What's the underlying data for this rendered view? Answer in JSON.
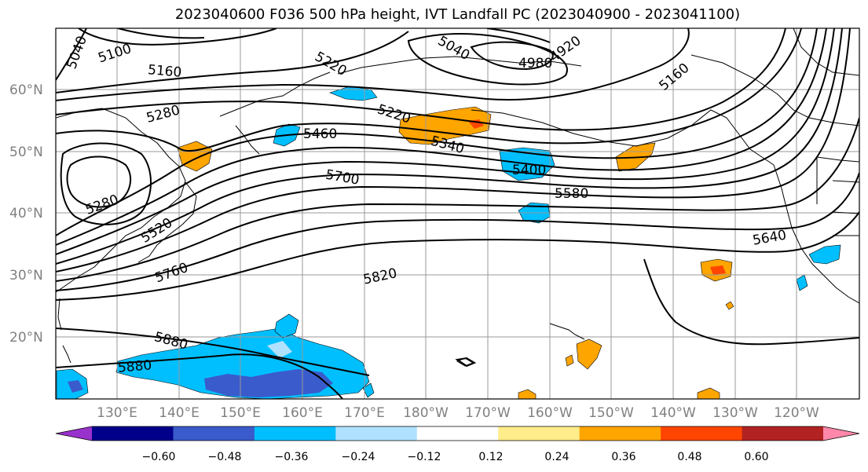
{
  "title": "2023040600 F036 500 hPa height, IVT Landfall PC (2023040900 - 2023041100)",
  "lat_labels": [
    "60°N",
    "50°N",
    "40°N",
    "30°N",
    "20°N"
  ],
  "lon_labels": [
    "130°E",
    "140°E",
    "150°E",
    "160°E",
    "170°E",
    "180°W",
    "170°W",
    "160°W",
    "150°W",
    "140°W",
    "130°W",
    "120°W"
  ],
  "contour_labels": [
    "5040",
    "5100",
    "5160",
    "5220",
    "5280",
    "5460",
    "5220",
    "5340",
    "5040",
    "4980",
    "4920",
    "5160",
    "5400",
    "5700",
    "5580",
    "5280",
    "5520",
    "5760",
    "5640",
    "5820",
    "5880",
    "5880"
  ],
  "colorbar": {
    "colors": [
      "#9932CC",
      "#00008B",
      "#3A5BCB",
      "#00BFFF",
      "#B0E2FF",
      "#FFFFFF",
      "#FFEC8B",
      "#FFA500",
      "#FF4500",
      "#B22222",
      "#FF88AA"
    ],
    "tick_labels": [
      "−0.60",
      "−0.48",
      "−0.36",
      "−0.24",
      "−0.12",
      "0.12",
      "0.24",
      "0.36",
      "0.48",
      "0.60"
    ]
  }
}
